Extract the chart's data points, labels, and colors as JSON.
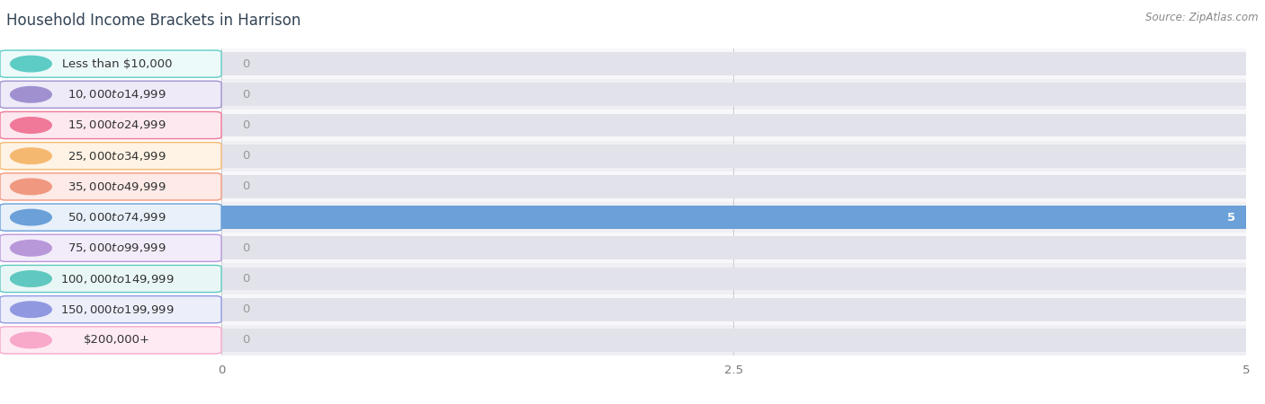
{
  "title": "Household Income Brackets in Harrison",
  "source": "Source: ZipAtlas.com",
  "categories": [
    "Less than $10,000",
    "$10,000 to $14,999",
    "$15,000 to $24,999",
    "$25,000 to $34,999",
    "$35,000 to $49,999",
    "$50,000 to $74,999",
    "$75,000 to $99,999",
    "$100,000 to $149,999",
    "$150,000 to $199,999",
    "$200,000+"
  ],
  "values": [
    0,
    0,
    0,
    0,
    0,
    5,
    0,
    0,
    0,
    0
  ],
  "bar_colors": [
    "#5dccc4",
    "#a090d0",
    "#f07898",
    "#f5b870",
    "#f09880",
    "#6ba0d8",
    "#b898d8",
    "#60c8c0",
    "#9098e0",
    "#f8a8c8"
  ],
  "label_bg_colors": [
    "#edfafa",
    "#eeeaf8",
    "#fde8ef",
    "#fef3e4",
    "#feeae6",
    "#e8f0fa",
    "#f2ecfa",
    "#e8f7f6",
    "#eceffa",
    "#feeaf3"
  ],
  "xlim": [
    0,
    5
  ],
  "xticks": [
    0,
    2.5,
    5
  ],
  "bg_color": "#f2f2f7",
  "row_even_color": "#f8f8fb",
  "row_odd_color": "#efeff4",
  "bar_bg_color": "#e2e2ea",
  "value_in_bar_color": "#ffffff",
  "value_out_bar_color": "#999999",
  "title_fontsize": 12,
  "source_fontsize": 8.5,
  "label_fontsize": 9.5,
  "value_fontsize": 9.5,
  "tick_fontsize": 9.5
}
